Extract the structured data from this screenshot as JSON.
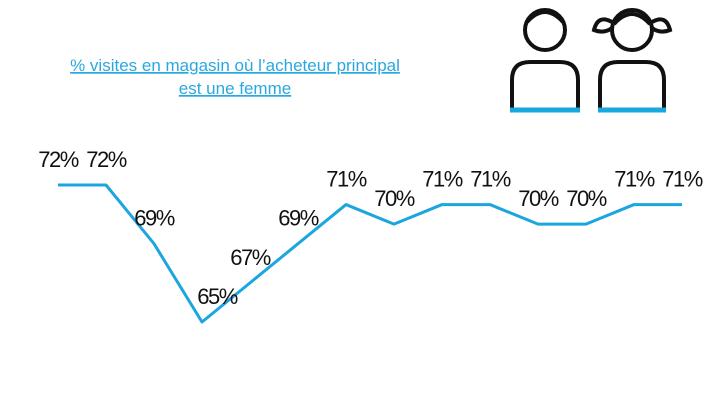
{
  "chart_data": {
    "type": "line",
    "title": [
      "% visites en magasin où l’acheteur principal",
      "est une femme"
    ],
    "categories": [
      null,
      null,
      null,
      null,
      null,
      null,
      null,
      null,
      null,
      null,
      null,
      null,
      null,
      null
    ],
    "series": [
      {
        "color": "#1ba6df",
        "values": [
          72,
          72,
          69,
          65,
          67,
          69,
          71,
          70,
          71,
          71,
          70,
          70,
          71,
          71
        ],
        "value_labels": [
          "72%",
          "72%",
          "69%",
          "65%",
          "67%",
          "69%",
          "71%",
          "70%",
          "71%",
          "71%",
          "70%",
          "70%",
          "71%",
          "71%"
        ]
      }
    ]
  }
}
